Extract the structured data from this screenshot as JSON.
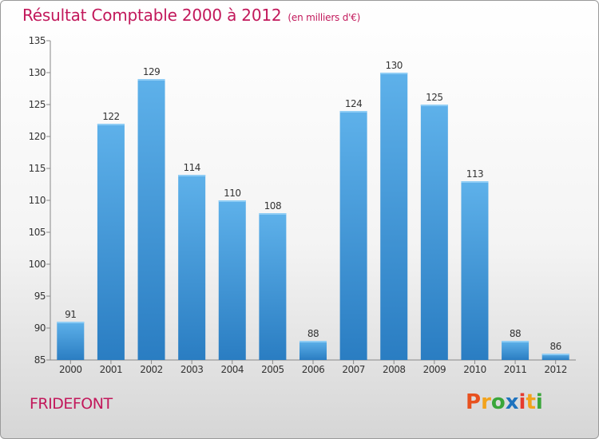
{
  "title": "Résultat Comptable 2000 à 2012",
  "subtitle": "(en milliers d'€)",
  "place_name": "FRIDEFONT",
  "logo": {
    "letters": [
      "P",
      "r",
      "o",
      "x",
      "i",
      "t",
      "i"
    ],
    "colors": [
      "#e8511f",
      "#f2a31c",
      "#3aa63a",
      "#1e73be",
      "#e63b2e",
      "#f2a31c",
      "#3aa63a"
    ]
  },
  "colors": {
    "title": "#c2185b",
    "bar_top": "#5eb1ea",
    "bar_bottom": "#2a7dc2"
  },
  "chart_data": {
    "type": "bar",
    "title": "Résultat Comptable 2000 à 2012",
    "xlabel": "",
    "ylabel": "en milliers d'€",
    "categories": [
      "2000",
      "2001",
      "2002",
      "2003",
      "2004",
      "2005",
      "2006",
      "2007",
      "2008",
      "2009",
      "2010",
      "2011",
      "2012"
    ],
    "values": [
      91,
      122,
      129,
      114,
      110,
      108,
      88,
      124,
      130,
      125,
      113,
      88,
      86
    ],
    "ylim": [
      85,
      135
    ],
    "yticks": [
      85,
      90,
      95,
      100,
      105,
      110,
      115,
      120,
      125,
      130,
      135
    ],
    "grid": false,
    "legend": "none"
  }
}
